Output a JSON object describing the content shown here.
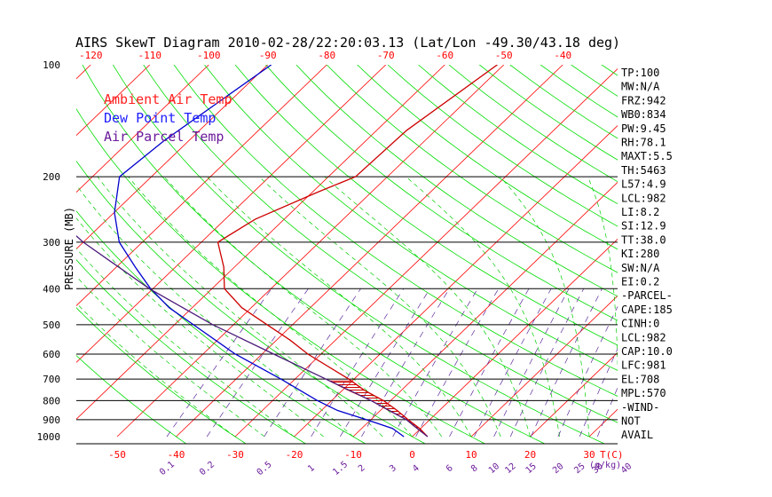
{
  "chart_data": {
    "type": "line",
    "title": "AIRS SkewT Diagram 2010-02-28/22:20:03.13 (Lat/Lon -49.30/43.18 deg)",
    "ylabel": "PRESSURE (MB)",
    "x_unit_label": "T(C)",
    "mixing_ratio_unit_label": "(g/kg)",
    "y_scale": "log",
    "pressure_ticks": [
      "100",
      "200",
      "300",
      "400",
      "500",
      "600",
      "700",
      "800",
      "900",
      "1000"
    ],
    "pressure_tick_values": [
      100,
      200,
      300,
      400,
      500,
      600,
      700,
      800,
      900,
      1000
    ],
    "bottom_temp_ticks": [
      "-50",
      "-40",
      "-30",
      "-20",
      "-10",
      "0",
      "10",
      "20",
      "30"
    ],
    "bottom_temp_values": [
      -50,
      -40,
      -30,
      -20,
      -10,
      0,
      10,
      20,
      30
    ],
    "top_temp_ticks": [
      "-120",
      "-110",
      "-100",
      "-90",
      "-80",
      "-70",
      "-60",
      "-50",
      "-40"
    ],
    "top_temp_values": [
      -120,
      -110,
      -100,
      -90,
      -80,
      -70,
      -60,
      -50,
      -40
    ],
    "mixing_ratio_ticks": [
      "0.1",
      "0.2",
      "0.5",
      "1",
      "1.5",
      "2",
      "3",
      "4",
      "6",
      "8",
      "10",
      "12",
      "15",
      "20",
      "25",
      "30",
      "40"
    ],
    "mixing_ratio_values": [
      0.1,
      0.2,
      0.5,
      1,
      1.5,
      2,
      3,
      4,
      6,
      8,
      10,
      12,
      15,
      20,
      25,
      30,
      40
    ],
    "legend": [
      {
        "label": "Ambient Air Temp",
        "color": "#ff2020"
      },
      {
        "label": "Dew Point Temp",
        "color": "#2020ff"
      },
      {
        "label": "Air Parcel Temp",
        "color": "#6a1a9a"
      }
    ],
    "series": [
      {
        "name": "Ambient Air Temp",
        "color": "#cc0000",
        "points": [
          [
            100,
            -51.1
          ],
          [
            150,
            -54.9
          ],
          [
            200,
            -55.4
          ],
          [
            220,
            -59.1
          ],
          [
            260,
            -64.9
          ],
          [
            300,
            -67.2
          ],
          [
            350,
            -61.8
          ],
          [
            400,
            -57.9
          ],
          [
            450,
            -51.6
          ],
          [
            500,
            -44.3
          ],
          [
            550,
            -37.7
          ],
          [
            600,
            -32.2
          ],
          [
            700,
            -20.9
          ],
          [
            750,
            -16.3
          ],
          [
            800,
            -11.2
          ],
          [
            850,
            -7.2
          ],
          [
            900,
            -3.7
          ],
          [
            950,
            -0.2
          ],
          [
            1000,
            2.6
          ]
        ]
      },
      {
        "name": "Dew Point Temp",
        "color": "#0000cc",
        "points": [
          [
            100,
            -89.4
          ],
          [
            160,
            -94.2
          ],
          [
            200,
            -95.4
          ],
          [
            250,
            -89.9
          ],
          [
            300,
            -83.9
          ],
          [
            350,
            -76.8
          ],
          [
            400,
            -70.4
          ],
          [
            450,
            -63.9
          ],
          [
            500,
            -56.8
          ],
          [
            600,
            -44.5
          ],
          [
            700,
            -32.4
          ],
          [
            800,
            -22.4
          ],
          [
            850,
            -17.3
          ],
          [
            900,
            -10.8
          ],
          [
            950,
            -4.8
          ],
          [
            1000,
            -1.4
          ]
        ]
      },
      {
        "name": "Air Parcel Temp",
        "color": "#4b1a7a",
        "points": [
          [
            100,
            -142.2
          ],
          [
            150,
            -125.0
          ],
          [
            200,
            -111.2
          ],
          [
            250,
            -100.7
          ],
          [
            300,
            -90.0
          ],
          [
            400,
            -70.6
          ],
          [
            500,
            -53.5
          ],
          [
            600,
            -38.0
          ],
          [
            700,
            -24.8
          ],
          [
            800,
            -13.3
          ],
          [
            900,
            -4.0
          ],
          [
            1000,
            2.6
          ]
        ]
      }
    ],
    "cape_shading": {
      "from_pressure": 975,
      "to_pressure": 708,
      "color": "#cc0000"
    }
  },
  "indices": [
    "TP:100",
    "MW:N/A",
    "FRZ:942",
    "WB0:834",
    "PW:9.45",
    "RH:78.1",
    "MAXT:5.5",
    "TH:5463",
    "L57:4.9",
    "LCL:982",
    "LI:8.2",
    "SI:12.9",
    "TT:38.0",
    "KI:280",
    "SW:N/A",
    "EI:0.2",
    "-PARCEL-",
    "CAPE:185",
    "CINH:0",
    "LCL:982",
    "CAP:10.0",
    "LFC:981",
    "EL:708",
    "MPL:570",
    "-WIND-",
    "NOT",
    "AVAIL"
  ],
  "colors": {
    "isotherm": "#ff0000",
    "dry_adiabat": "#00dd00",
    "moist_adiabat": "#00cc00",
    "mixing_ratio": "#5a2a9a",
    "isobar": "#000000",
    "top_axis_text": "#ff0000",
    "bottom_axis_text": "#ff0000",
    "mixing_ratio_text": "#6a1a9a"
  }
}
